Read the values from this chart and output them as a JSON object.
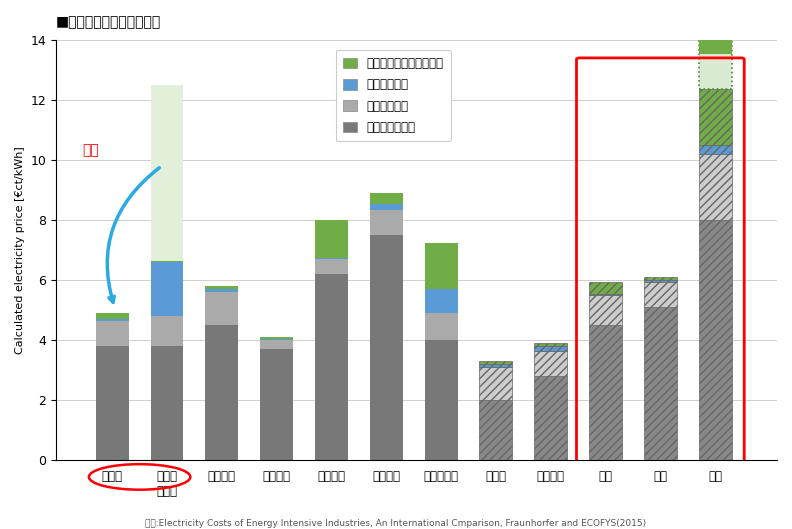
{
  "categories": [
    "ドイツ",
    "ドイツ\n減免前",
    "オランダ",
    "フランス",
    "イギリス",
    "イタリア",
    "デンマーク",
    "カナダ",
    "アメリカ",
    "韓国",
    "中国",
    "日本"
  ],
  "fuel_cost": [
    3.8,
    3.8,
    4.5,
    3.7,
    6.2,
    7.5,
    4.0,
    2.0,
    2.8,
    4.5,
    5.1,
    8.0
  ],
  "transmission": [
    0.85,
    1.0,
    1.1,
    0.3,
    0.5,
    0.85,
    0.9,
    1.1,
    0.85,
    1.0,
    0.85,
    2.2
  ],
  "taxes": [
    0.05,
    1.8,
    0.1,
    0.05,
    0.05,
    0.2,
    0.8,
    0.1,
    0.15,
    0.05,
    0.05,
    0.3
  ],
  "renewables": [
    0.2,
    0.05,
    0.1,
    0.05,
    1.25,
    0.35,
    1.55,
    0.1,
    0.1,
    0.4,
    0.1,
    1.85
  ],
  "japan_extra_renew": 1.7,
  "hatched_indices_diagonal": [
    7,
    8
  ],
  "hatched_indices_bg": [
    9,
    10,
    11
  ],
  "colors": {
    "fuel": "#787878",
    "transmission": "#aaaaaa",
    "taxes": "#5b9bd5",
    "renewables": "#70ad47",
    "bar_light_green": "#e2efd9",
    "japan_extra_color": "#d9ead3"
  },
  "title": "■産業用電力料金への影響",
  "ylabel": "Calculated electricity price [€ct/kWh]",
  "source": "出典:Electricity Costs of Energy Intensive Industries, An International Cmparison, Fraunhorfer and ECOFYS(2015)",
  "legend_labels": [
    "再エネと環境関連賦課金",
    "税金と課徴金",
    "送配電コスト",
    "燃料調達コスト"
  ],
  "ylim": [
    0,
    14
  ],
  "yticks": [
    0,
    2,
    4,
    6,
    8,
    10,
    12,
    14
  ],
  "arrow_color": "#29abe2",
  "red_color": "#ff0000",
  "gemmen_text": "減免"
}
